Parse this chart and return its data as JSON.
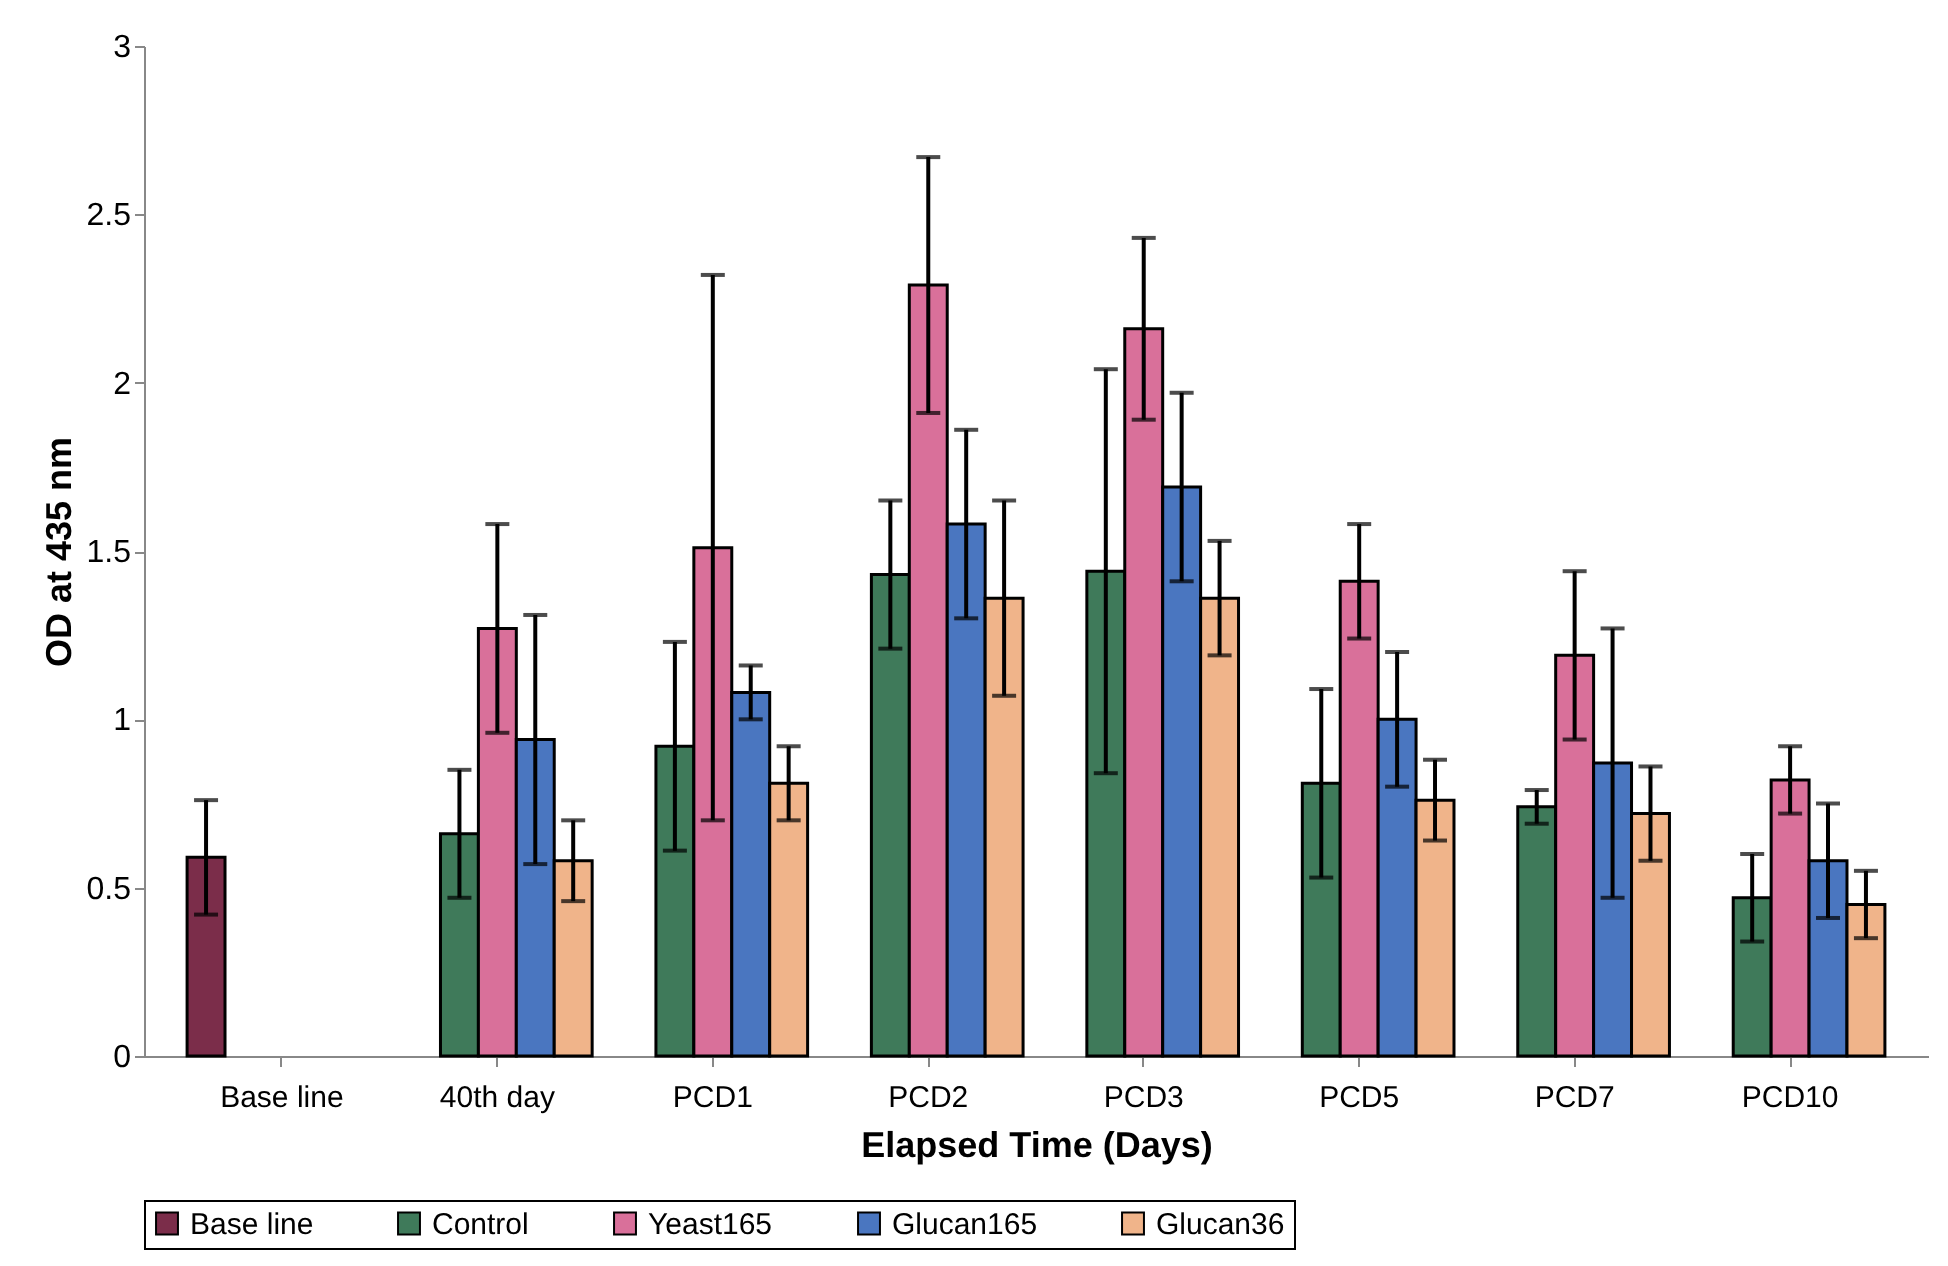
{
  "chart_data": {
    "type": "bar",
    "xlabel": "Elapsed Time (Days)",
    "ylabel": "OD at 435 nm",
    "categories": [
      "Base line",
      "40th day",
      "PCD1",
      "PCD2",
      "PCD3",
      "PCD5",
      "PCD7",
      "PCD10"
    ],
    "series": [
      {
        "name": "Base line",
        "color": "#7b2d4a",
        "values": [
          0.59,
          null,
          null,
          null,
          null,
          null,
          null,
          null
        ],
        "errors": [
          0.17,
          null,
          null,
          null,
          null,
          null,
          null,
          null
        ]
      },
      {
        "name": "Control",
        "color": "#3f7a5a",
        "values": [
          null,
          0.66,
          0.92,
          1.43,
          1.44,
          0.81,
          0.74,
          0.47
        ],
        "errors": [
          null,
          0.19,
          0.31,
          0.22,
          0.6,
          0.28,
          0.05,
          0.13
        ]
      },
      {
        "name": "Yeast165",
        "color": "#d9709a",
        "values": [
          null,
          1.27,
          1.51,
          2.29,
          2.16,
          1.41,
          1.19,
          0.82
        ],
        "errors": [
          null,
          0.31,
          0.81,
          0.38,
          0.27,
          0.17,
          0.25,
          0.1
        ]
      },
      {
        "name": "Glucan165",
        "color": "#4a76c0",
        "values": [
          null,
          0.94,
          1.08,
          1.58,
          1.69,
          1.0,
          0.87,
          0.58
        ],
        "errors": [
          null,
          0.37,
          0.08,
          0.28,
          0.28,
          0.2,
          0.4,
          0.17
        ]
      },
      {
        "name": "Glucan36",
        "color": "#f0b48a",
        "values": [
          null,
          0.58,
          0.81,
          1.36,
          1.36,
          0.76,
          0.72,
          0.45
        ],
        "errors": [
          null,
          0.12,
          0.11,
          0.29,
          0.17,
          0.12,
          0.14,
          0.1
        ]
      }
    ],
    "ylim": [
      0,
      3
    ],
    "yticks": [
      0,
      0.5,
      1,
      1.5,
      2,
      2.5,
      3
    ],
    "grid": false,
    "legend": "bottom"
  }
}
